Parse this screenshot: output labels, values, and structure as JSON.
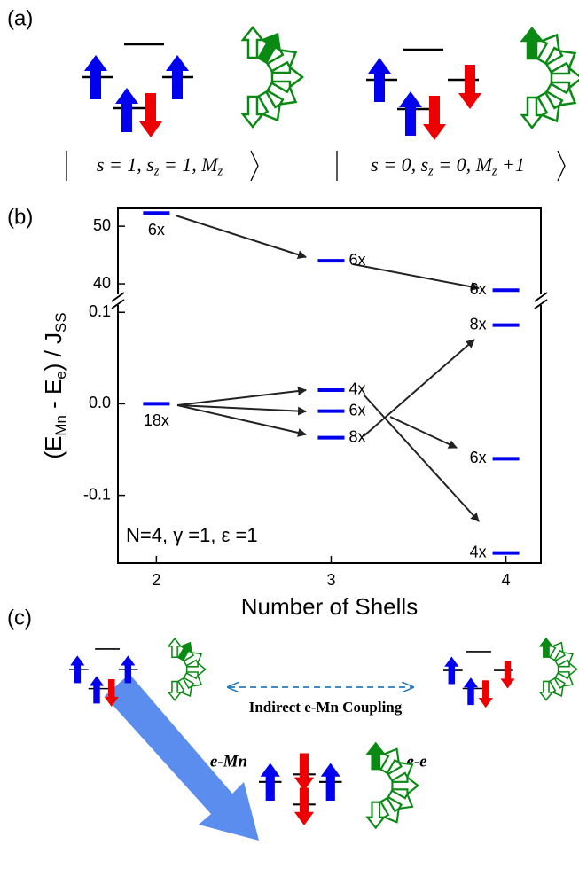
{
  "panel_labels": [
    "(a)",
    "(b)",
    "(c)"
  ],
  "kets": [
    [
      "s = 1, s",
      "z",
      " = 1, M",
      "z"
    ],
    [
      "s = 0, s",
      "z",
      " = 0, M",
      "z",
      " +1"
    ]
  ],
  "chart_data": {
    "type": "level",
    "xlabel": "Number of Shells",
    "ylabel": [
      "(E",
      "Mn",
      " - E",
      "e",
      ") / J",
      "SS"
    ],
    "annotation": "N=4, γ =1, ε =1",
    "xlim": [
      1.78,
      4.2
    ],
    "xticks": [
      2,
      3,
      4
    ],
    "segments": [
      {
        "ylim": [
          37.7,
          53.1
        ],
        "yticks": [
          40,
          50
        ],
        "x": [
          2,
          3,
          4
        ],
        "values": [
          52.3,
          44,
          38.9
        ],
        "degeneracy_labels": [
          "6x",
          "6x",
          "6x"
        ]
      },
      {
        "ylim": [
          -0.174,
          0.107
        ],
        "yticks": [
          -0.1,
          {
            "value": 0,
            "label": "0.0"
          },
          0.1
        ],
        "x": [
          2,
          3,
          3,
          3,
          4,
          4,
          4
        ],
        "values": [
          0,
          0.015,
          -0.008,
          -0.037,
          0.086,
          -0.06,
          -0.163
        ],
        "degeneracy_labels": [
          "18x",
          "4x",
          "6x",
          "8x",
          "8x",
          "6x",
          "4x"
        ]
      }
    ],
    "color": "#0000ee"
  },
  "coupling": {
    "label": "Indirect e-Mn Coupling",
    "left": "e-Mn",
    "right": "e-e"
  }
}
